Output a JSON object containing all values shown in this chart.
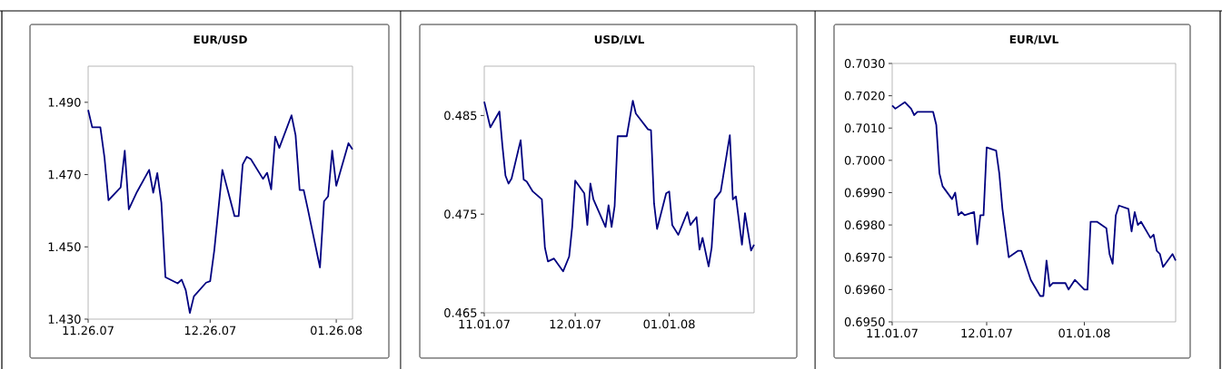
{
  "chart_data": [
    {
      "type": "line",
      "title": "EUR/USD",
      "color": "#000080",
      "x": [
        "2007-11-26",
        "2007-11-27",
        "2007-11-29",
        "2007-11-30",
        "2007-12-01",
        "2007-12-04",
        "2007-12-05",
        "2007-12-06",
        "2007-12-08",
        "2007-12-11",
        "2007-12-12",
        "2007-12-13",
        "2007-12-14",
        "2007-12-15",
        "2007-12-18",
        "2007-12-19",
        "2007-12-20",
        "2007-12-21",
        "2007-12-22",
        "2007-12-25",
        "2007-12-26",
        "2007-12-27",
        "2007-12-29",
        "2008-01-01",
        "2008-01-02",
        "2008-01-03",
        "2008-01-04",
        "2008-01-05",
        "2008-01-08",
        "2008-01-09",
        "2008-01-10",
        "2008-01-11",
        "2008-01-12",
        "2008-01-15",
        "2008-01-16",
        "2008-01-17",
        "2008-01-18",
        "2008-01-19",
        "2008-01-22",
        "2008-01-23",
        "2008-01-24",
        "2008-01-25",
        "2008-01-26",
        "2008-01-29",
        "2008-01-30"
      ],
      "values": [
        1.4879,
        1.4831,
        1.4831,
        1.4749,
        1.4629,
        1.4665,
        1.4766,
        1.4604,
        1.4652,
        1.4713,
        1.465,
        1.4704,
        1.4623,
        1.4416,
        1.4399,
        1.4409,
        1.438,
        1.4317,
        1.4363,
        1.4401,
        1.4405,
        1.4489,
        1.4713,
        1.4585,
        1.4585,
        1.4728,
        1.4749,
        1.4743,
        1.4688,
        1.4705,
        1.4659,
        1.4805,
        1.4774,
        1.4864,
        1.4809,
        1.4657,
        1.4657,
        1.4605,
        1.4443,
        1.4626,
        1.464,
        1.4766,
        1.4669,
        1.4787,
        1.477
      ],
      "xlim": [
        "2007-11-26",
        "2008-01-30"
      ],
      "xticks": [
        {
          "value": "2007-11-26",
          "label": "11.26.07"
        },
        {
          "value": "2007-12-26",
          "label": "12.26.07"
        },
        {
          "value": "2008-01-26",
          "label": "01.26.08"
        }
      ],
      "ylim": [
        1.43,
        1.5
      ],
      "yticks": [
        {
          "value": 1.43,
          "label": "1.430"
        },
        {
          "value": 1.45,
          "label": "1.450"
        },
        {
          "value": 1.47,
          "label": "1.470"
        },
        {
          "value": 1.49,
          "label": "1.490"
        }
      ]
    },
    {
      "type": "line",
      "title": "USD/LVL",
      "color": "#000080",
      "x": [
        "2007-11-01",
        "2007-11-03",
        "2007-11-06",
        "2007-11-07",
        "2007-11-08",
        "2007-11-09",
        "2007-11-10",
        "2007-11-13",
        "2007-11-14",
        "2007-11-15",
        "2007-11-17",
        "2007-11-20",
        "2007-11-21",
        "2007-11-22",
        "2007-11-24",
        "2007-11-27",
        "2007-11-29",
        "2007-11-30",
        "2007-12-01",
        "2007-12-04",
        "2007-12-05",
        "2007-12-06",
        "2007-12-07",
        "2007-12-11",
        "2007-12-12",
        "2007-12-13",
        "2007-12-14",
        "2007-12-15",
        "2007-12-18",
        "2007-12-20",
        "2007-12-21",
        "2007-12-25",
        "2007-12-26",
        "2007-12-27",
        "2007-12-28",
        "2007-12-31",
        "2008-01-01",
        "2008-01-02",
        "2008-01-04",
        "2008-01-07",
        "2008-01-08",
        "2008-01-10",
        "2008-01-11",
        "2008-01-12",
        "2008-01-14",
        "2008-01-15",
        "2008-01-16",
        "2008-01-18",
        "2008-01-21",
        "2008-01-22",
        "2008-01-23",
        "2008-01-25",
        "2008-01-26",
        "2008-01-28",
        "2008-01-29"
      ],
      "values": [
        0.4864,
        0.4838,
        0.4854,
        0.4819,
        0.4789,
        0.4781,
        0.4786,
        0.4825,
        0.4785,
        0.4783,
        0.4773,
        0.4765,
        0.4716,
        0.4702,
        0.4705,
        0.4692,
        0.4707,
        0.4737,
        0.4784,
        0.4771,
        0.4739,
        0.4781,
        0.4765,
        0.4737,
        0.4759,
        0.4737,
        0.4758,
        0.4829,
        0.4829,
        0.4865,
        0.4852,
        0.4836,
        0.4835,
        0.4761,
        0.4735,
        0.4771,
        0.4773,
        0.4739,
        0.4729,
        0.4752,
        0.4739,
        0.4747,
        0.4714,
        0.4726,
        0.4697,
        0.4716,
        0.4765,
        0.4773,
        0.483,
        0.4765,
        0.4768,
        0.4719,
        0.4751,
        0.4713,
        0.4719
      ],
      "xlim": [
        "2007-11-01",
        "2008-01-29"
      ],
      "xticks": [
        {
          "value": "2007-11-01",
          "label": "11.01.07"
        },
        {
          "value": "2007-12-01",
          "label": "12.01.07"
        },
        {
          "value": "2008-01-01",
          "label": "01.01.08"
        }
      ],
      "ylim": [
        0.465,
        0.49
      ],
      "yticks": [
        0.465,
        0.475,
        0.485
      ]
    },
    {
      "type": "line",
      "title": "EUR/LVL",
      "color": "#000080",
      "x": [
        "2007-11-01",
        "2007-11-02",
        "2007-11-05",
        "2007-11-07",
        "2007-11-08",
        "2007-11-09",
        "2007-11-14",
        "2007-11-15",
        "2007-11-16",
        "2007-11-17",
        "2007-11-20",
        "2007-11-21",
        "2007-11-22",
        "2007-11-23",
        "2007-11-24",
        "2007-11-27",
        "2007-11-28",
        "2007-11-29",
        "2007-11-30",
        "2007-12-01",
        "2007-12-04",
        "2007-12-05",
        "2007-12-06",
        "2007-12-08",
        "2007-12-11",
        "2007-12-12",
        "2007-12-15",
        "2007-12-18",
        "2007-12-19",
        "2007-12-20",
        "2007-12-21",
        "2007-12-22",
        "2007-12-26",
        "2007-12-27",
        "2007-12-29",
        "2008-01-01",
        "2008-01-02",
        "2008-01-03",
        "2008-01-05",
        "2008-01-08",
        "2008-01-09",
        "2008-01-10",
        "2008-01-11",
        "2008-01-12",
        "2008-01-15",
        "2008-01-16",
        "2008-01-17",
        "2008-01-18",
        "2008-01-19",
        "2008-01-22",
        "2008-01-23",
        "2008-01-24",
        "2008-01-25",
        "2008-01-26",
        "2008-01-29",
        "2008-01-30"
      ],
      "values": [
        0.7017,
        0.7016,
        0.7018,
        0.7016,
        0.7014,
        0.7015,
        0.7015,
        0.7011,
        0.6996,
        0.6992,
        0.6988,
        0.699,
        0.6983,
        0.6984,
        0.6983,
        0.6984,
        0.6974,
        0.6983,
        0.6983,
        0.7004,
        0.7003,
        0.6996,
        0.6985,
        0.697,
        0.6972,
        0.6972,
        0.6963,
        0.6958,
        0.6958,
        0.6969,
        0.6961,
        0.6962,
        0.6962,
        0.696,
        0.6963,
        0.696,
        0.696,
        0.6981,
        0.6981,
        0.6979,
        0.6971,
        0.6968,
        0.6983,
        0.6986,
        0.6985,
        0.6978,
        0.6984,
        0.698,
        0.6981,
        0.6976,
        0.6977,
        0.6972,
        0.6971,
        0.6967,
        0.6971,
        0.6969
      ],
      "xlim": [
        "2007-11-01",
        "2008-01-30"
      ],
      "xticks": [
        {
          "value": "2007-11-01",
          "label": "11.01.07"
        },
        {
          "value": "2007-12-01",
          "label": "12.01.07"
        },
        {
          "value": "2008-01-01",
          "label": "01.01.08"
        }
      ],
      "ylim": [
        0.695,
        0.703
      ],
      "yticks": [
        {
          "value": 0.695,
          "label": "0.6950"
        },
        {
          "value": 0.696,
          "label": "0.6960"
        },
        {
          "value": 0.697,
          "label": "0.6970"
        },
        {
          "value": 0.698,
          "label": "0.6980"
        },
        {
          "value": 0.699,
          "label": "0.6990"
        },
        {
          "value": 0.7,
          "label": "0.7000"
        },
        {
          "value": 0.701,
          "label": "0.7010"
        },
        {
          "value": 0.702,
          "label": "0.7020"
        },
        {
          "value": 0.703,
          "label": "0.7030"
        }
      ]
    }
  ]
}
